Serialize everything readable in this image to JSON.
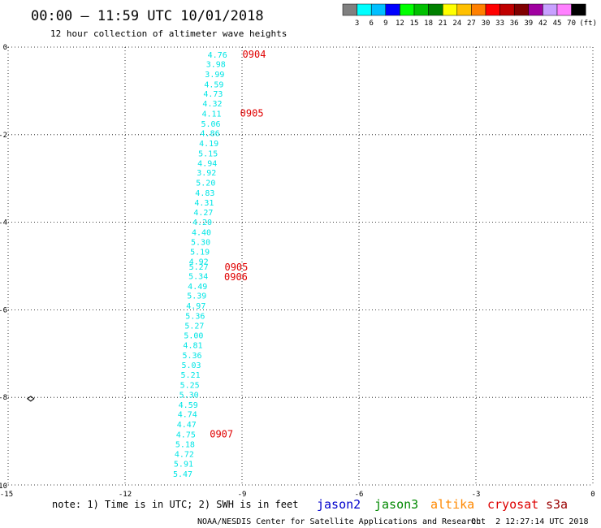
{
  "header": {
    "title": "00:00 – 11:59 UTC 10/01/2018",
    "subtitle": "12 hour collection of altimeter wave heights"
  },
  "colorbar": {
    "labels": [
      "3",
      "6",
      "9",
      "12",
      "15",
      "18",
      "21",
      "24",
      "27",
      "30",
      "33",
      "36",
      "39",
      "42",
      "45",
      "70",
      "(ft)"
    ],
    "colors": [
      "#808080",
      "#00ffff",
      "#00bfff",
      "#0000ff",
      "#00ff00",
      "#00c000",
      "#008000",
      "#ffff00",
      "#ffc000",
      "#ff8000",
      "#ff0000",
      "#c00000",
      "#800000",
      "#a000a0",
      "#c8a0ff",
      "#ff80ff",
      "#000000"
    ]
  },
  "footer": {
    "note": "note: 1) Time is in UTC; 2) SWH is in feet",
    "credit": "NOAA/NESDIS Center for Satellite Applications and Research",
    "timestamp": "Oct  2 12:27:14 UTC 2018",
    "satellites": [
      {
        "name": "jason2",
        "color": "#0000cc"
      },
      {
        "name": "jason3",
        "color": "#008800"
      },
      {
        "name": "altika",
        "color": "#ff8800"
      },
      {
        "name": "cryosat",
        "color": "#dd0000"
      },
      {
        "name": "s3a",
        "color": "#990000"
      }
    ]
  },
  "chart_data": {
    "type": "scatter",
    "xlim": [
      -15,
      0
    ],
    "ylim": [
      -10,
      0
    ],
    "xticks": [
      "-15",
      "-12",
      "-9",
      "-6",
      "-3",
      "0"
    ],
    "yticks": [
      "0",
      "-2",
      "-4",
      "-6",
      "-8",
      "-10"
    ],
    "grid": true,
    "points": [
      {
        "x": -9.38,
        "y": -0.17,
        "value": "4.76"
      },
      {
        "x": -9.42,
        "y": -0.38,
        "value": "3.98"
      },
      {
        "x": -9.45,
        "y": -0.61,
        "value": "3.99"
      },
      {
        "x": -9.47,
        "y": -0.84,
        "value": "4.59"
      },
      {
        "x": -9.49,
        "y": -1.06,
        "value": "4.73"
      },
      {
        "x": -9.51,
        "y": -1.28,
        "value": "4.32"
      },
      {
        "x": -9.53,
        "y": -1.51,
        "value": "4.11"
      },
      {
        "x": -9.55,
        "y": -1.74,
        "value": "5.06"
      },
      {
        "x": -9.57,
        "y": -1.96,
        "value": "4.86"
      },
      {
        "x": -9.6,
        "y": -2.19,
        "value": "4.19"
      },
      {
        "x": -9.62,
        "y": -2.42,
        "value": "5.15"
      },
      {
        "x": -9.64,
        "y": -2.64,
        "value": "4.94"
      },
      {
        "x": -9.66,
        "y": -2.86,
        "value": "3.92"
      },
      {
        "x": -9.68,
        "y": -3.09,
        "value": "5.20"
      },
      {
        "x": -9.7,
        "y": -3.32,
        "value": "4.83"
      },
      {
        "x": -9.72,
        "y": -3.54,
        "value": "4.31"
      },
      {
        "x": -9.74,
        "y": -3.77,
        "value": "4.27"
      },
      {
        "x": -9.77,
        "y": -3.99,
        "value": "4.20"
      },
      {
        "x": -9.79,
        "y": -4.22,
        "value": "4.40"
      },
      {
        "x": -9.81,
        "y": -4.44,
        "value": "5.30"
      },
      {
        "x": -9.83,
        "y": -4.67,
        "value": "5.19"
      },
      {
        "x": -9.86,
        "y": -4.89,
        "value": "4.92"
      },
      {
        "x": -9.86,
        "y": -5.01,
        "value": "5.27"
      },
      {
        "x": -9.87,
        "y": -5.22,
        "value": "5.34"
      },
      {
        "x": -9.89,
        "y": -5.45,
        "value": "4.49"
      },
      {
        "x": -9.91,
        "y": -5.67,
        "value": "5.39"
      },
      {
        "x": -9.93,
        "y": -5.9,
        "value": "4.97"
      },
      {
        "x": -9.95,
        "y": -6.13,
        "value": "5.36"
      },
      {
        "x": -9.97,
        "y": -6.35,
        "value": "5.27"
      },
      {
        "x": -9.99,
        "y": -6.58,
        "value": "5.00"
      },
      {
        "x": -10.01,
        "y": -6.8,
        "value": "4.81"
      },
      {
        "x": -10.03,
        "y": -7.03,
        "value": "5.36"
      },
      {
        "x": -10.05,
        "y": -7.25,
        "value": "5.03"
      },
      {
        "x": -10.07,
        "y": -7.48,
        "value": "5.21"
      },
      {
        "x": -10.09,
        "y": -7.71,
        "value": "5.25"
      },
      {
        "x": -10.11,
        "y": -7.93,
        "value": "5.30"
      },
      {
        "x": -10.13,
        "y": -8.16,
        "value": "4.59"
      },
      {
        "x": -10.15,
        "y": -8.38,
        "value": "4.74"
      },
      {
        "x": -10.17,
        "y": -8.61,
        "value": "4.47"
      },
      {
        "x": -10.19,
        "y": -8.84,
        "value": "4.75"
      },
      {
        "x": -10.21,
        "y": -9.06,
        "value": "5.18"
      },
      {
        "x": -10.23,
        "y": -9.29,
        "value": "4.72"
      },
      {
        "x": -10.25,
        "y": -9.51,
        "value": "5.91"
      },
      {
        "x": -10.27,
        "y": -9.74,
        "value": "5.47"
      }
    ],
    "time_labels": [
      {
        "x": -9.03,
        "y": -0.17,
        "value": "0904"
      },
      {
        "x": -9.09,
        "y": -1.51,
        "value": "0905"
      },
      {
        "x": -9.49,
        "y": -5.03,
        "value": "0905"
      },
      {
        "x": -9.5,
        "y": -5.25,
        "value": "0906"
      },
      {
        "x": -9.87,
        "y": -8.84,
        "value": "0907"
      }
    ],
    "markers": [
      {
        "x": -14.42,
        "y": -8.03,
        "symbol": "diamond"
      }
    ]
  }
}
